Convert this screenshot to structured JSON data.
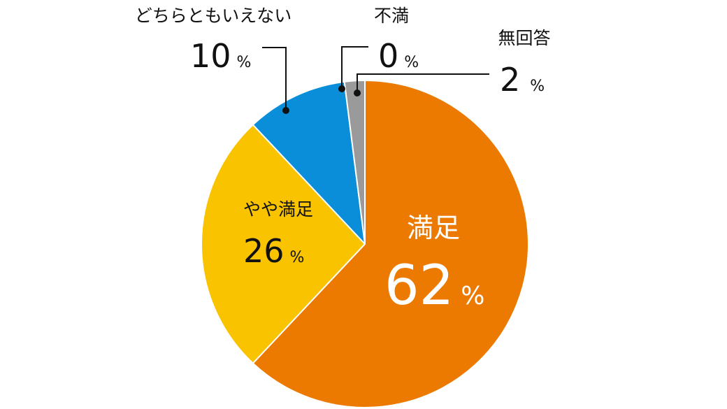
{
  "chart_data": {
    "type": "pie",
    "start": "12 o'clock",
    "direction": "clockwise",
    "slices": [
      {
        "label": "満足",
        "value": 62,
        "color": "#EC7A00"
      },
      {
        "label": "やや満足",
        "value": 26,
        "color": "#F9C300"
      },
      {
        "label": "どちらともいえない",
        "value": 10,
        "color": "#0A8ED9"
      },
      {
        "label": "不満",
        "value": 0,
        "color": "#4A4A4A"
      },
      {
        "label": "無回答",
        "value": 2,
        "color": "#9A9A9A"
      }
    ],
    "percent_sign": "%"
  }
}
